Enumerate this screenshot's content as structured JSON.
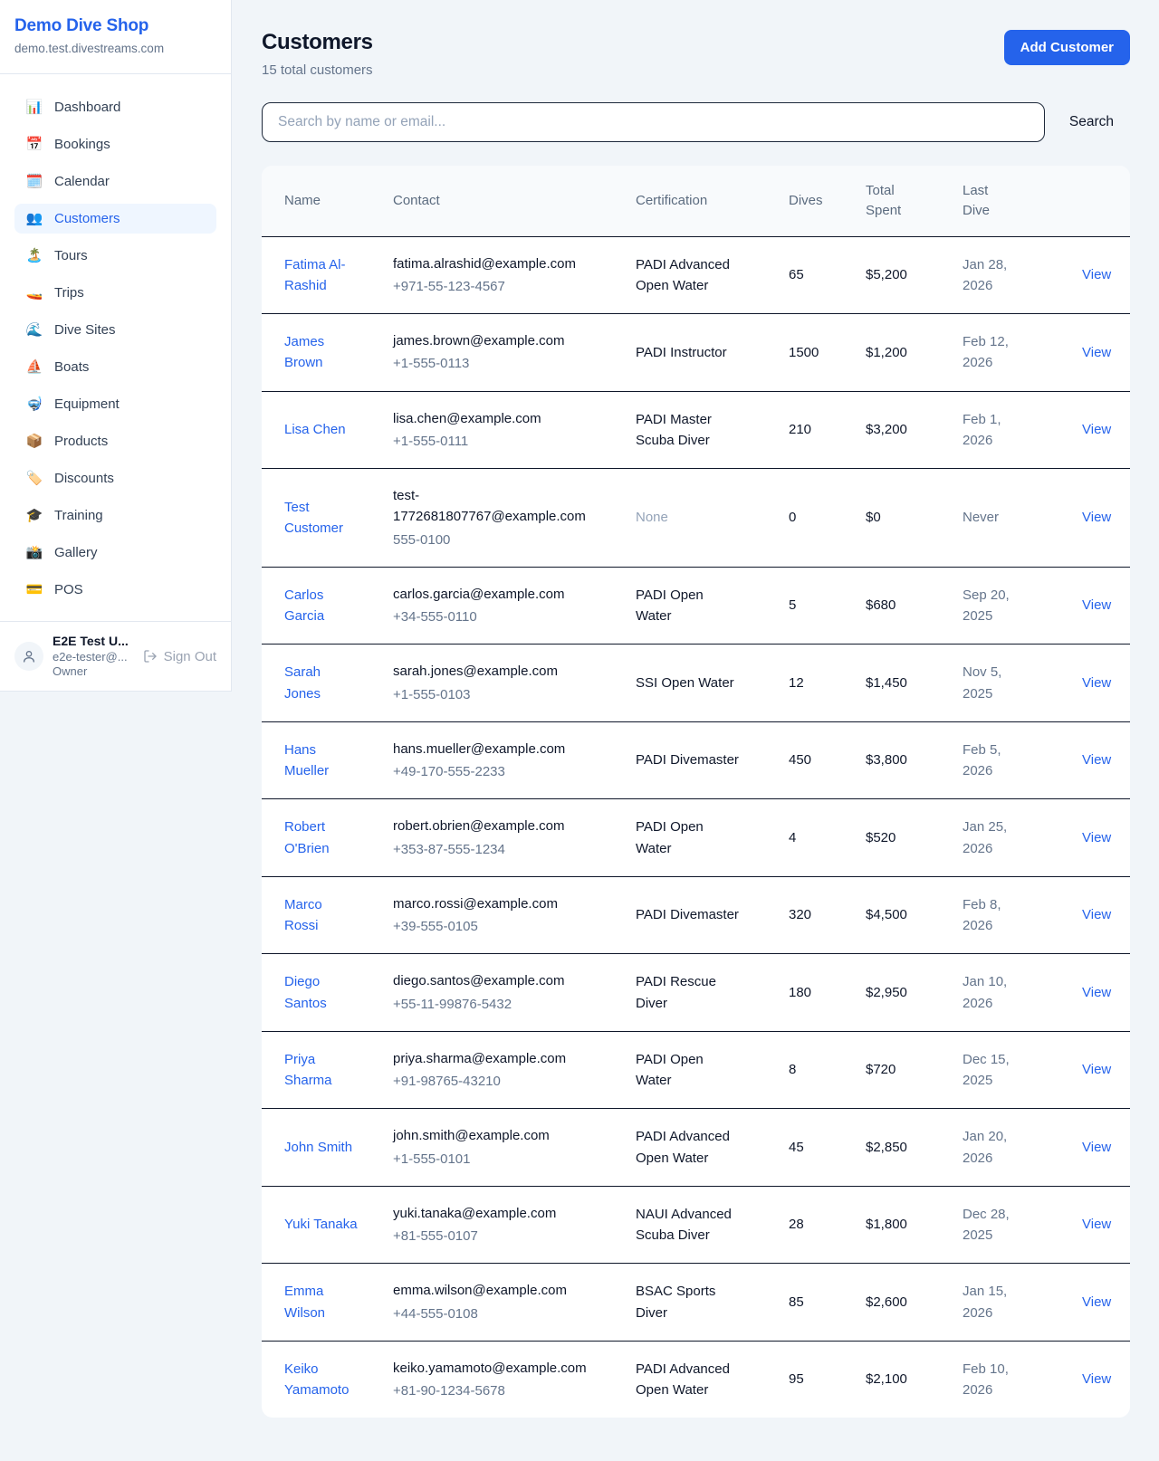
{
  "sidebar": {
    "shop_name": "Demo Dive Shop",
    "shop_domain": "demo.test.divestreams.com",
    "nav": [
      {
        "id": "dashboard",
        "icon": "📊",
        "icon_name": "bar-chart-icon",
        "label": "Dashboard",
        "active": false
      },
      {
        "id": "bookings",
        "icon": "📅",
        "icon_name": "calendar-icon",
        "label": "Bookings",
        "active": false
      },
      {
        "id": "calendar",
        "icon": "🗓️",
        "icon_name": "spiral-calendar-icon",
        "label": "Calendar",
        "active": false
      },
      {
        "id": "customers",
        "icon": "👥",
        "icon_name": "people-icon",
        "label": "Customers",
        "active": true
      },
      {
        "id": "tours",
        "icon": "🏝️",
        "icon_name": "island-icon",
        "label": "Tours",
        "active": false
      },
      {
        "id": "trips",
        "icon": "🚤",
        "icon_name": "speedboat-icon",
        "label": "Trips",
        "active": false
      },
      {
        "id": "dive-sites",
        "icon": "🌊",
        "icon_name": "wave-icon",
        "label": "Dive Sites",
        "active": false
      },
      {
        "id": "boats",
        "icon": "⛵",
        "icon_name": "sailboat-icon",
        "label": "Boats",
        "active": false
      },
      {
        "id": "equipment",
        "icon": "🤿",
        "icon_name": "diving-mask-icon",
        "label": "Equipment",
        "active": false
      },
      {
        "id": "products",
        "icon": "📦",
        "icon_name": "package-icon",
        "label": "Products",
        "active": false
      },
      {
        "id": "discounts",
        "icon": "🏷️",
        "icon_name": "tag-icon",
        "label": "Discounts",
        "active": false
      },
      {
        "id": "training",
        "icon": "🎓",
        "icon_name": "graduation-cap-icon",
        "label": "Training",
        "active": false
      },
      {
        "id": "gallery",
        "icon": "📸",
        "icon_name": "camera-flash-icon",
        "label": "Gallery",
        "active": false
      },
      {
        "id": "pos",
        "icon": "💳",
        "icon_name": "credit-card-icon",
        "label": "POS",
        "active": false
      }
    ],
    "user": {
      "name": "E2E Test U...",
      "email": "e2e-tester@...",
      "role": "Owner",
      "sign_out_label": "Sign Out"
    }
  },
  "header": {
    "title": "Customers",
    "subtitle": "15 total customers",
    "add_button_label": "Add Customer"
  },
  "search": {
    "placeholder": "Search by name or email...",
    "button_label": "Search"
  },
  "table": {
    "columns": [
      "Name",
      "Contact",
      "Certification",
      "Dives",
      "Total Spent",
      "Last Dive",
      ""
    ],
    "view_label": "View",
    "rows": [
      {
        "name": "Fatima Al-Rashid",
        "email": "fatima.alrashid@example.com",
        "phone": "+971-55-123-4567",
        "certification": "PADI Advanced Open Water",
        "dives": "65",
        "total_spent": "$5,200",
        "last_dive": "Jan 28, 2026"
      },
      {
        "name": "James Brown",
        "email": "james.brown@example.com",
        "phone": "+1-555-0113",
        "certification": "PADI Instructor",
        "dives": "1500",
        "total_spent": "$1,200",
        "last_dive": "Feb 12, 2026"
      },
      {
        "name": "Lisa Chen",
        "email": "lisa.chen@example.com",
        "phone": "+1-555-0111",
        "certification": "PADI Master Scuba Diver",
        "dives": "210",
        "total_spent": "$3,200",
        "last_dive": "Feb 1, 2026"
      },
      {
        "name": "Test Customer",
        "email": "test-1772681807767@example.com",
        "phone": "555-0100",
        "certification": "None",
        "dives": "0",
        "total_spent": "$0",
        "last_dive": "Never"
      },
      {
        "name": "Carlos Garcia",
        "email": "carlos.garcia@example.com",
        "phone": "+34-555-0110",
        "certification": "PADI Open Water",
        "dives": "5",
        "total_spent": "$680",
        "last_dive": "Sep 20, 2025"
      },
      {
        "name": "Sarah Jones",
        "email": "sarah.jones@example.com",
        "phone": "+1-555-0103",
        "certification": "SSI Open Water",
        "dives": "12",
        "total_spent": "$1,450",
        "last_dive": "Nov 5, 2025"
      },
      {
        "name": "Hans Mueller",
        "email": "hans.mueller@example.com",
        "phone": "+49-170-555-2233",
        "certification": "PADI Divemaster",
        "dives": "450",
        "total_spent": "$3,800",
        "last_dive": "Feb 5, 2026"
      },
      {
        "name": "Robert O'Brien",
        "email": "robert.obrien@example.com",
        "phone": "+353-87-555-1234",
        "certification": "PADI Open Water",
        "dives": "4",
        "total_spent": "$520",
        "last_dive": "Jan 25, 2026"
      },
      {
        "name": "Marco Rossi",
        "email": "marco.rossi@example.com",
        "phone": "+39-555-0105",
        "certification": "PADI Divemaster",
        "dives": "320",
        "total_spent": "$4,500",
        "last_dive": "Feb 8, 2026"
      },
      {
        "name": "Diego Santos",
        "email": "diego.santos@example.com",
        "phone": "+55-11-99876-5432",
        "certification": "PADI Rescue Diver",
        "dives": "180",
        "total_spent": "$2,950",
        "last_dive": "Jan 10, 2026"
      },
      {
        "name": "Priya Sharma",
        "email": "priya.sharma@example.com",
        "phone": "+91-98765-43210",
        "certification": "PADI Open Water",
        "dives": "8",
        "total_spent": "$720",
        "last_dive": "Dec 15, 2025"
      },
      {
        "name": "John Smith",
        "email": "john.smith@example.com",
        "phone": "+1-555-0101",
        "certification": "PADI Advanced Open Water",
        "dives": "45",
        "total_spent": "$2,850",
        "last_dive": "Jan 20, 2026"
      },
      {
        "name": "Yuki Tanaka",
        "email": "yuki.tanaka@example.com",
        "phone": "+81-555-0107",
        "certification": "NAUI Advanced Scuba Diver",
        "dives": "28",
        "total_spent": "$1,800",
        "last_dive": "Dec 28, 2025"
      },
      {
        "name": "Emma Wilson",
        "email": "emma.wilson@example.com",
        "phone": "+44-555-0108",
        "certification": "BSAC Sports Diver",
        "dives": "85",
        "total_spent": "$2,600",
        "last_dive": "Jan 15, 2026"
      },
      {
        "name": "Keiko Yamamoto",
        "email": "keiko.yamamoto@example.com",
        "phone": "+81-90-1234-5678",
        "certification": "PADI Advanced Open Water",
        "dives": "95",
        "total_spent": "$2,100",
        "last_dive": "Feb 10, 2026"
      }
    ]
  },
  "colors": {
    "accent": "#2563eb",
    "active_nav_bg": "#eff6ff",
    "page_bg": "#f1f5f9",
    "muted_text": "#64748b",
    "row_border": "#0f172a"
  }
}
